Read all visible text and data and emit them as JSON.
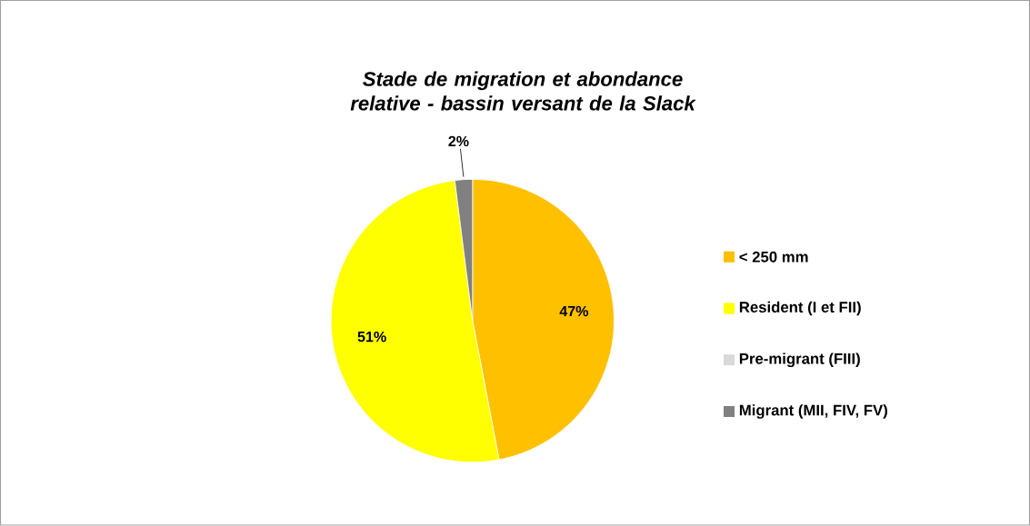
{
  "chart_data": {
    "type": "pie",
    "title": "Stade de migration et abondance relative -  bassin versant de la Slack",
    "categories": [
      "< 250 mm",
      "Resident (I et FII)",
      "Pre-migrant (FIII)",
      "Migrant (MII, FIV, FV)"
    ],
    "values": [
      47,
      51,
      0,
      2
    ],
    "colors": [
      "#ffc000",
      "#ffff00",
      "#d9d9d9",
      "#808080"
    ],
    "value_labels": [
      "47%",
      "51%",
      null,
      "2%"
    ],
    "legend": "right"
  }
}
